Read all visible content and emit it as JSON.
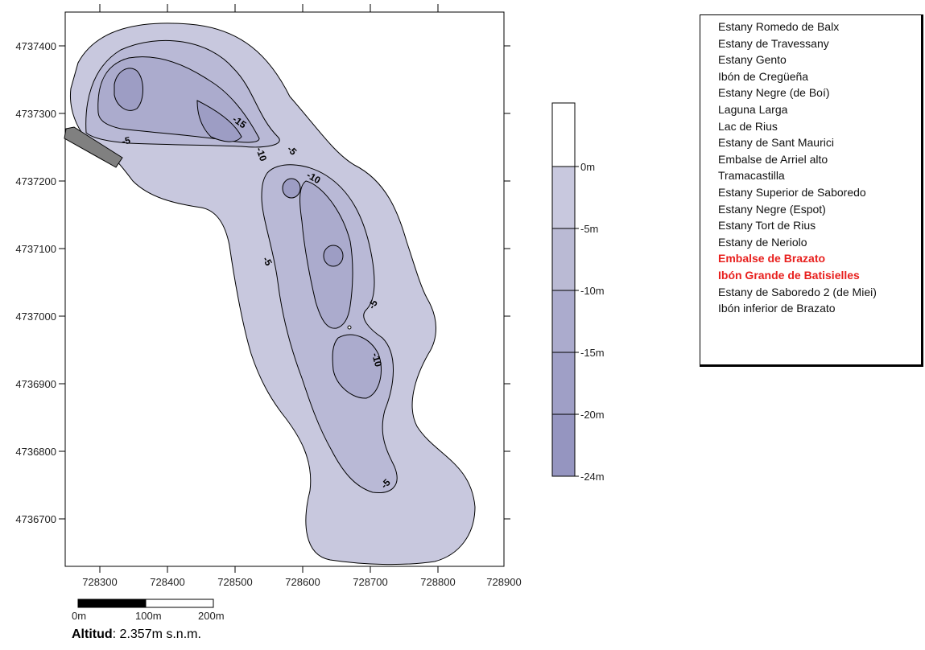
{
  "map": {
    "x_ticks": [
      "728300",
      "728400",
      "728500",
      "728600",
      "728700",
      "728800",
      "728900"
    ],
    "y_ticks": [
      "4737400",
      "4737300",
      "4737200",
      "4737100",
      "4737000",
      "4736900",
      "4736800",
      "4736700"
    ],
    "contour_labels": [
      "-15",
      "-10",
      "-5",
      "-5",
      "-10",
      "-5",
      "-5",
      "-10",
      "-5"
    ],
    "fill_colors": [
      "#c8c8de",
      "#b9b9d6",
      "#ababcd",
      "#9d9dc4"
    ]
  },
  "legend_bar": {
    "labels": [
      "0m",
      "-5m",
      "-10m",
      "-15m",
      "-20m",
      "-24m"
    ],
    "colors": [
      "#ffffff",
      "#c8c8de",
      "#babad4",
      "#ababcd",
      "#9f9fc6",
      "#9595c0"
    ]
  },
  "scale_bar": {
    "labels": [
      "0m",
      "100m",
      "200m"
    ]
  },
  "lakes": [
    {
      "name": "Estany Romedo de Balx",
      "highlight": false
    },
    {
      "name": "Estany de Travessany",
      "highlight": false
    },
    {
      "name": "Estany Gento",
      "highlight": false
    },
    {
      "name": "Ibón de Cregüeña",
      "highlight": false
    },
    {
      "name": "Estany Negre (de Boí)",
      "highlight": false
    },
    {
      "name": "Laguna Larga",
      "highlight": false
    },
    {
      "name": "Lac de Rius",
      "highlight": false
    },
    {
      "name": "Estany de Sant Maurici",
      "highlight": false
    },
    {
      "name": "Embalse de Arriel alto",
      "highlight": false
    },
    {
      "name": "Tramacastilla",
      "highlight": false
    },
    {
      "name": "Estany Superior de Saboredo",
      "highlight": false
    },
    {
      "name": "Estany Negre (Espot)",
      "highlight": false
    },
    {
      "name": "Estany Tort de Rius",
      "highlight": false
    },
    {
      "name": "Estany de Neriolo",
      "highlight": false
    },
    {
      "name": "Embalse de Brazato",
      "highlight": true
    },
    {
      "name": "Ibón Grande de Batisielles",
      "highlight": true
    },
    {
      "name": "Estany de Saboredo 2 (de Miei)",
      "highlight": false
    },
    {
      "name": "Ibón inferior de Brazato",
      "highlight": false
    }
  ],
  "altitude": {
    "label": "Altitud",
    "value": ": 2.357m s.n.m."
  }
}
